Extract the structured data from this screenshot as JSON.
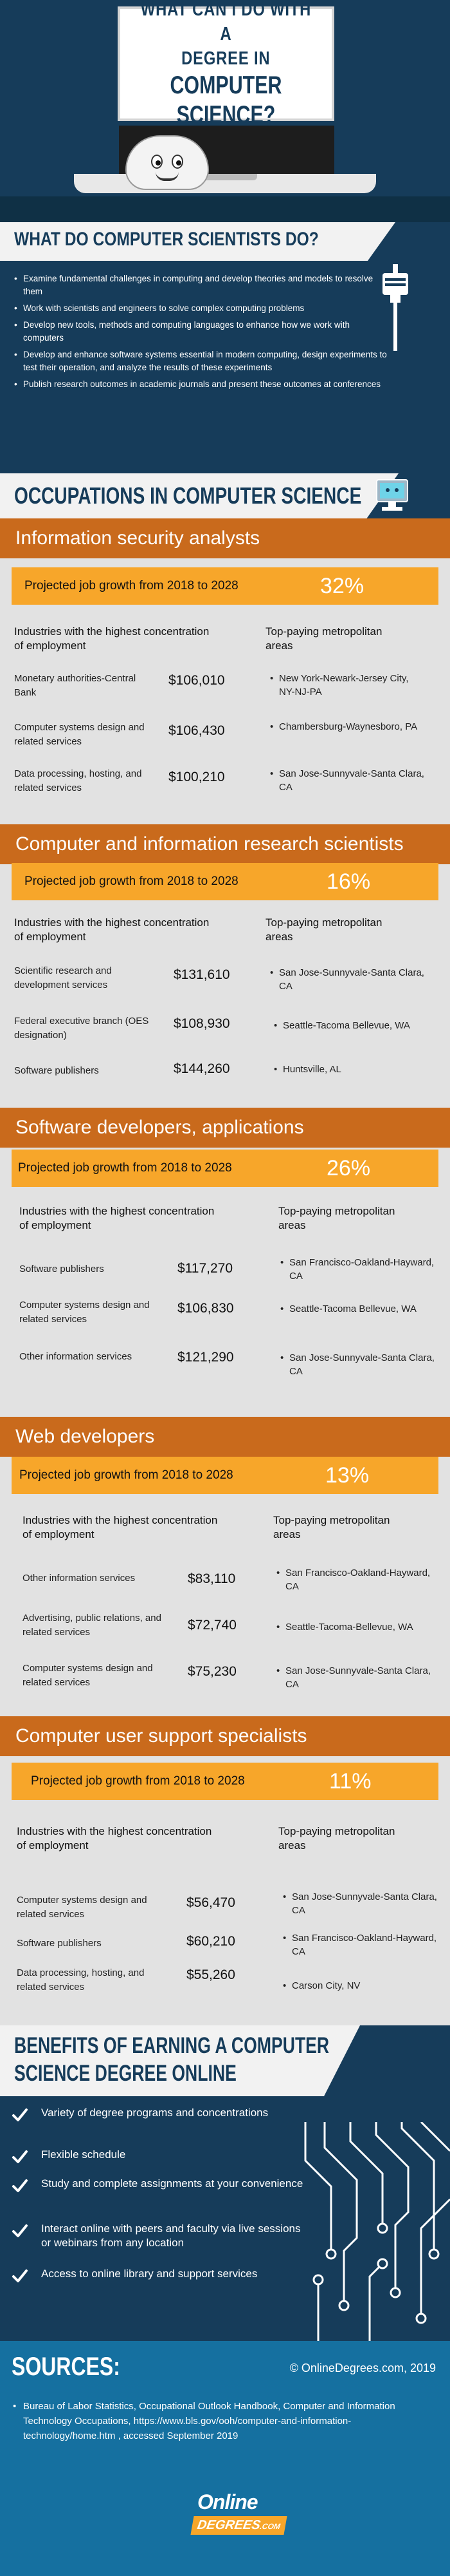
{
  "hero": {
    "title_line1": "WHAT CAN I DO WITH A",
    "title_line2": "DEGREE IN",
    "title_line3": "COMPUTER SCIENCE?"
  },
  "whatdo": {
    "heading": "WHAT DO COMPUTER SCIENTISTS DO?",
    "items": [
      "Examine fundamental challenges in computing and develop theories and models to resolve them",
      "Work with scientists and engineers to solve complex computing problems",
      "Develop new tools, methods and computing languages to enhance how we work with computers",
      "Develop and enhance software systems essential in modern computing, design experiments to test their operation, and analyze the results of these experiments",
      "Publish research outcomes in academic journals and present these outcomes at conferences"
    ]
  },
  "occupations_heading": "OCCUPATIONS IN COMPUTER SCIENCE",
  "common": {
    "growth_label": "Projected job growth from 2018 to 2028",
    "col1_header": "Industries with the highest concentration of employment",
    "col2_header": "Top-paying metropolitan areas"
  },
  "occupations": [
    {
      "title": "Information security analysts",
      "growth": "32%",
      "rows": [
        {
          "industry": "Monetary authorities-Central Bank",
          "salary": "$106,010",
          "metro": "New York-Newark-Jersey City, NY-NJ-PA"
        },
        {
          "industry": "Computer systems design and related services",
          "salary": "$106,430",
          "metro": "Chambersburg-Waynesboro, PA"
        },
        {
          "industry": "Data processing, hosting, and related services",
          "salary": "$100,210",
          "metro": "San Jose-Sunnyvale-Santa Clara, CA"
        }
      ]
    },
    {
      "title": "Computer and information research scientists",
      "growth": "16%",
      "rows": [
        {
          "industry": "Scientific research and development services",
          "salary": "$131,610",
          "metro": "San Jose-Sunnyvale-Santa Clara, CA"
        },
        {
          "industry": "Federal executive branch (OES designation)",
          "salary": "$108,930",
          "metro": "Seattle-Tacoma Bellevue, WA"
        },
        {
          "industry": "Software publishers",
          "salary": "$144,260",
          "metro": "Huntsville, AL"
        }
      ]
    },
    {
      "title": "Software developers, applications",
      "growth": "26%",
      "rows": [
        {
          "industry": "Software publishers",
          "salary": "$117,270",
          "metro": "San Francisco-Oakland-Hayward, CA"
        },
        {
          "industry": "Computer systems design and related services",
          "salary": "$106,830",
          "metro": "Seattle-Tacoma Bellevue, WA"
        },
        {
          "industry": "Other information services",
          "salary": "$121,290",
          "metro": "San Jose-Sunnyvale-Santa Clara, CA"
        }
      ]
    },
    {
      "title": "Web developers",
      "growth": "13%",
      "rows": [
        {
          "industry": "Other information services",
          "salary": "$83,110",
          "metro": "San Francisco-Oakland-Hayward, CA"
        },
        {
          "industry": "Advertising, public relations, and related services",
          "salary": "$72,740",
          "metro": "Seattle-Tacoma-Bellevue, WA"
        },
        {
          "industry": "Computer systems design and related services",
          "salary": "$75,230",
          "metro": "San Jose-Sunnyvale-Santa Clara, CA"
        }
      ]
    },
    {
      "title": "Computer user support specialists",
      "growth": "11%",
      "rows": [
        {
          "industry": "Computer systems design and related services",
          "salary": "$56,470",
          "metro": "San Jose-Sunnyvale-Santa Clara, CA"
        },
        {
          "industry": "Software publishers",
          "salary": "$60,210",
          "metro": "San Francisco-Oakland-Hayward, CA"
        },
        {
          "industry": "Data processing, hosting, and related services",
          "salary": "$55,260",
          "metro": "Carson City, NV"
        }
      ]
    }
  ],
  "benefits": {
    "heading_line1": "BENEFITS OF EARNING A COMPUTER",
    "heading_line2": "SCIENCE DEGREE ONLINE",
    "items": [
      "Variety of degree programs and concentrations",
      "Flexible schedule",
      "Study and complete assignments at your convenience",
      "Interact online with peers and faculty via live sessions or webinars from any location",
      "Access to online library and support services"
    ]
  },
  "sources": {
    "heading": "SOURCES:",
    "copyright": "© OnlineDegrees.com, 2019",
    "text": "Bureau of Labor Statistics, Occupational Outlook Handbook, Computer and Information Technology Occupations, https://www.bls.gov/ooh/computer-and-information-technology/home.htm , accessed September 2019",
    "logo_top": "Online",
    "logo_bottom": "DEGREES",
    "logo_suffix": ".COM"
  },
  "colors": {
    "navy": "#163c5a",
    "orange": "#c96a1c",
    "amber": "#f7a62a",
    "sources_blue": "#1570a0"
  }
}
